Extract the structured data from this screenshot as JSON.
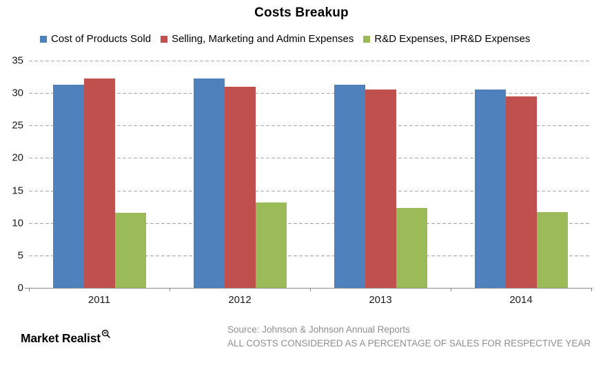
{
  "chart_data": {
    "type": "bar",
    "title": "Costs Breakup",
    "categories": [
      "2011",
      "2012",
      "2013",
      "2014"
    ],
    "series": [
      {
        "name": "Cost of Products Sold",
        "color": "#4F81BD",
        "values": [
          31.3,
          32.2,
          31.3,
          30.6
        ]
      },
      {
        "name": "Selling, Marketing and Admin Expenses",
        "color": "#C0504D",
        "values": [
          32.3,
          31.0,
          30.6,
          29.5
        ]
      },
      {
        "name": "R&D Expenses, IPR&D Expenses",
        "color": "#9BBB59",
        "values": [
          11.6,
          13.2,
          12.3,
          11.7
        ]
      }
    ],
    "ylim": [
      0,
      35
    ],
    "yticks": [
      0,
      5,
      10,
      15,
      20,
      25,
      30,
      35
    ],
    "xlabel": "",
    "ylabel": "",
    "grid": "dashed-horizontal",
    "legend_position": "top"
  },
  "footer": {
    "logo_text": "Market Realist",
    "source_line1": "Source: Johnson & Johnson Annual Reports",
    "source_line2": "ALL COSTS CONSIDERED AS A PERCENTAGE OF SALES FOR RESPECTIVE YEAR"
  },
  "colors": {
    "axis": "#8a8a8a",
    "gridline": "#a6a6a6",
    "source_text": "#8e8e8e",
    "title_text": "#000000"
  }
}
